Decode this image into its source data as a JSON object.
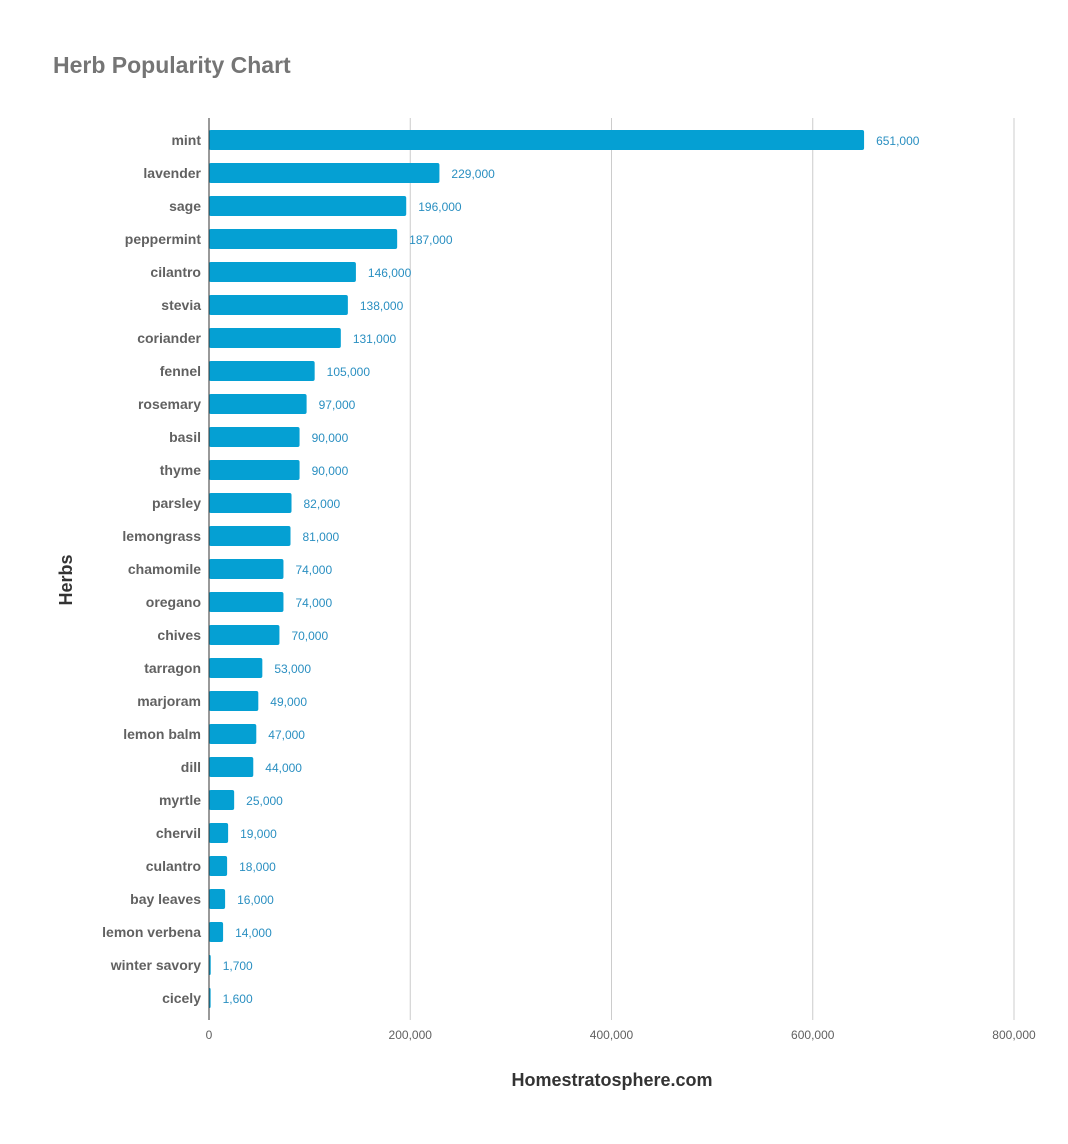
{
  "chart_data": {
    "type": "bar",
    "orientation": "horizontal",
    "title": "Herb Popularity Chart",
    "xlabel": "Homestratosphere.com",
    "ylabel": "Herbs",
    "xlim": [
      0,
      800000
    ],
    "xticks": [
      0,
      200000,
      400000,
      600000,
      800000
    ],
    "xtick_labels": [
      "0",
      "200,000",
      "400,000",
      "600,000",
      "800,000"
    ],
    "grid": true,
    "bar_color": "#05a0d3",
    "categories": [
      "mint",
      "lavender",
      "sage",
      "peppermint",
      "cilantro",
      "stevia",
      "coriander",
      "fennel",
      "rosemary",
      "basil",
      "thyme",
      "parsley",
      "lemongrass",
      "chamomile",
      "oregano",
      "chives",
      "tarragon",
      "marjoram",
      "lemon balm",
      "dill",
      "myrtle",
      "chervil",
      "culantro",
      "bay leaves",
      "lemon verbena",
      "winter savory",
      "cicely"
    ],
    "values": [
      651000,
      229000,
      196000,
      187000,
      146000,
      138000,
      131000,
      105000,
      97000,
      90000,
      90000,
      82000,
      81000,
      74000,
      74000,
      70000,
      53000,
      49000,
      47000,
      44000,
      25000,
      19000,
      18000,
      16000,
      14000,
      1700,
      1600
    ],
    "value_labels": [
      "651,000",
      "229,000",
      "196,000",
      "187,000",
      "146,000",
      "138,000",
      "131,000",
      "105,000",
      "97,000",
      "90,000",
      "90,000",
      "82,000",
      "81,000",
      "74,000",
      "74,000",
      "70,000",
      "53,000",
      "49,000",
      "47,000",
      "44,000",
      "25,000",
      "19,000",
      "18,000",
      "16,000",
      "14,000",
      "1,700",
      "1,600"
    ]
  }
}
